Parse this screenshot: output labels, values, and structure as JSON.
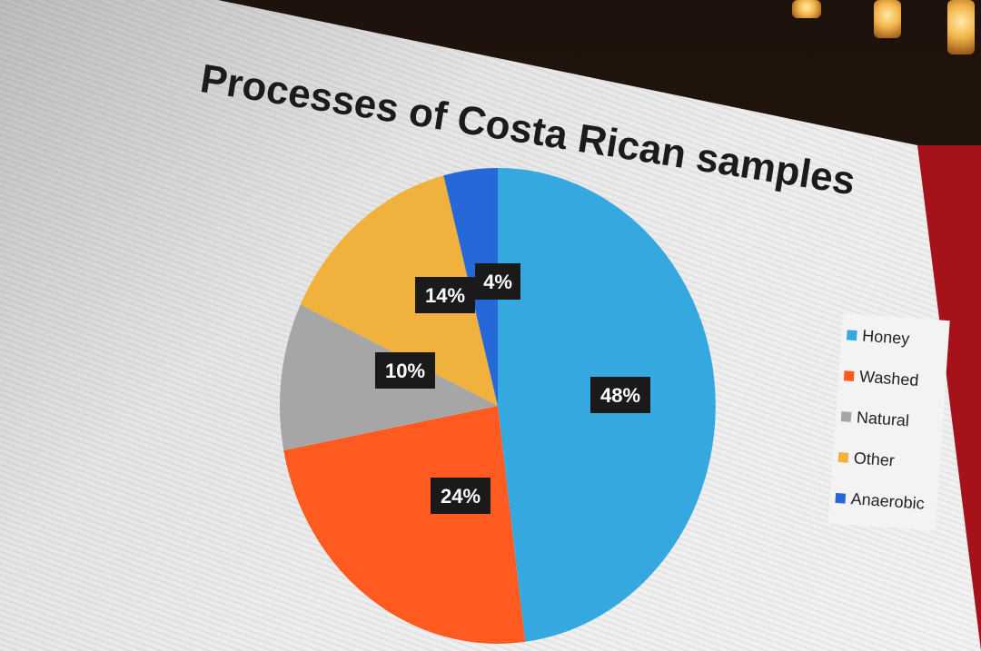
{
  "title": "Processes of Costa Rican samples",
  "chart_data": {
    "type": "pie",
    "title": "Processes of Costa Rican samples",
    "legend_position": "right",
    "slices": [
      {
        "label": "Honey",
        "value": 48,
        "display": "48%",
        "color": "#35a8e0"
      },
      {
        "label": "Washed",
        "value": 24,
        "display": "24%",
        "color": "#ff5a1f"
      },
      {
        "label": "Natural",
        "value": 10,
        "display": "10%",
        "color": "#a6a6a6"
      },
      {
        "label": "Other",
        "value": 14,
        "display": "14%",
        "color": "#f1b13d"
      },
      {
        "label": "Anaerobic",
        "value": 4,
        "display": "4%",
        "color": "#2768d8"
      }
    ]
  }
}
